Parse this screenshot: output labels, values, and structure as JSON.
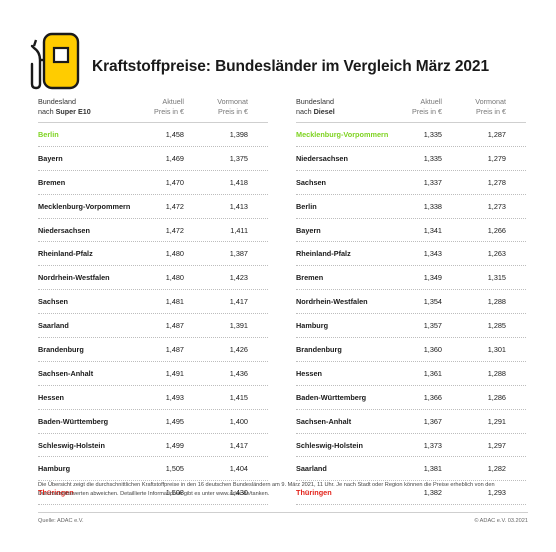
{
  "title": "Kraftstoffpreise: Bundesländer im Vergleich März 2021",
  "colors": {
    "accent": "#ffcc00",
    "best": "#7ed321",
    "worst": "#e2231a"
  },
  "left_table": {
    "header": {
      "col1_line1": "Bundesland",
      "col1_prefix": "nach ",
      "col1_fuel": "Super E10",
      "col2_line1": "Aktuell",
      "col2_line2": "Preis in €",
      "col3_line1": "Vormonat",
      "col3_line2": "Preis in €"
    },
    "rows": [
      {
        "name": "Berlin",
        "current": "1,458",
        "previous": "1,398"
      },
      {
        "name": "Bayern",
        "current": "1,469",
        "previous": "1,375"
      },
      {
        "name": "Bremen",
        "current": "1,470",
        "previous": "1,418"
      },
      {
        "name": "Mecklenburg-Vorpommern",
        "current": "1,472",
        "previous": "1,413"
      },
      {
        "name": "Niedersachsen",
        "current": "1,472",
        "previous": "1,411"
      },
      {
        "name": "Rheinland-Pfalz",
        "current": "1,480",
        "previous": "1,387"
      },
      {
        "name": "Nordrhein-Westfalen",
        "current": "1,480",
        "previous": "1,423"
      },
      {
        "name": "Sachsen",
        "current": "1,481",
        "previous": "1,417"
      },
      {
        "name": "Saarland",
        "current": "1,487",
        "previous": "1,391"
      },
      {
        "name": "Brandenburg",
        "current": "1,487",
        "previous": "1,426"
      },
      {
        "name": "Sachsen-Anhalt",
        "current": "1,491",
        "previous": "1,436"
      },
      {
        "name": "Hessen",
        "current": "1,493",
        "previous": "1,415"
      },
      {
        "name": "Baden-Württemberg",
        "current": "1,495",
        "previous": "1,400"
      },
      {
        "name": "Schleswig-Holstein",
        "current": "1,499",
        "previous": "1,417"
      },
      {
        "name": "Hamburg",
        "current": "1,505",
        "previous": "1,404"
      },
      {
        "name": "Thüringen",
        "current": "1,508",
        "previous": "1,430"
      }
    ]
  },
  "right_table": {
    "header": {
      "col1_line1": "Bundesland",
      "col1_prefix": "nach ",
      "col1_fuel": "Diesel",
      "col2_line1": "Aktuell",
      "col2_line2": "Preis in €",
      "col3_line1": "Vormonat",
      "col3_line2": "Preis in €"
    },
    "rows": [
      {
        "name": "Mecklenburg-Vorpommern",
        "current": "1,335",
        "previous": "1,287"
      },
      {
        "name": "Niedersachsen",
        "current": "1,335",
        "previous": "1,279"
      },
      {
        "name": "Sachsen",
        "current": "1,337",
        "previous": "1,278"
      },
      {
        "name": "Berlin",
        "current": "1,338",
        "previous": "1,273"
      },
      {
        "name": "Bayern",
        "current": "1,341",
        "previous": "1,266"
      },
      {
        "name": "Rheinland-Pfalz",
        "current": "1,343",
        "previous": "1,263"
      },
      {
        "name": "Bremen",
        "current": "1,349",
        "previous": "1,315"
      },
      {
        "name": "Nordrhein-Westfalen",
        "current": "1,354",
        "previous": "1,288"
      },
      {
        "name": "Hamburg",
        "current": "1,357",
        "previous": "1,285"
      },
      {
        "name": "Brandenburg",
        "current": "1,360",
        "previous": "1,301"
      },
      {
        "name": "Hessen",
        "current": "1,361",
        "previous": "1,288"
      },
      {
        "name": "Baden-Württemberg",
        "current": "1,366",
        "previous": "1,286"
      },
      {
        "name": "Sachsen-Anhalt",
        "current": "1,367",
        "previous": "1,291"
      },
      {
        "name": "Schleswig-Holstein",
        "current": "1,373",
        "previous": "1,297"
      },
      {
        "name": "Saarland",
        "current": "1,381",
        "previous": "1,282"
      },
      {
        "name": "Thüringen",
        "current": "1,382",
        "previous": "1,293"
      }
    ]
  },
  "footnote": "Die Übersicht zeigt die durchschnittlichen Kraftstoffpreise in den 16 deutschen Bundesländern am 9. März 2021, 11 Uhr. Je nach Stadt oder Region können die Preise erheblich von den Durchschnittswerten abweichen. Detaillierte Informationen gibt es unter www.adac.de/tanken.",
  "source": "Quelle: ADAC e.V.",
  "copyright": "© ADAC e.V. 03.2021",
  "icon": "fuel-pump-icon"
}
